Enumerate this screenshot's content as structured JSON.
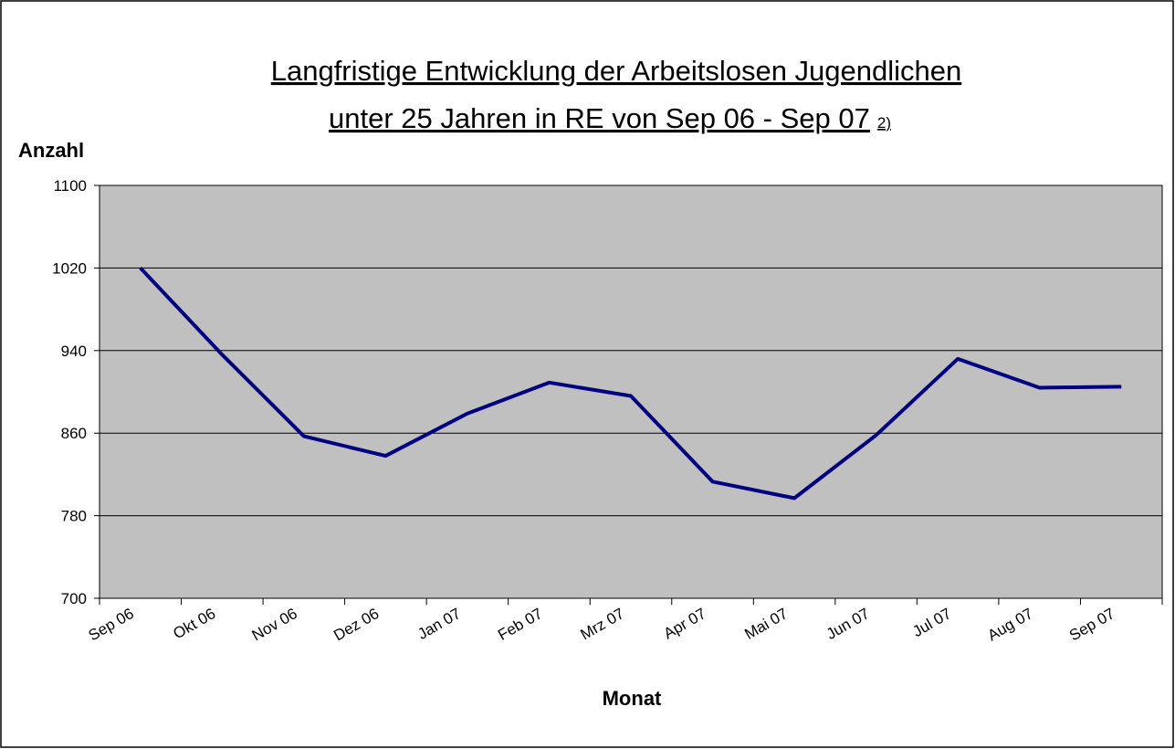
{
  "chart_data": {
    "type": "line",
    "title": [
      "Langfristige Entwicklung der Arbeitslosen Jugendlichen",
      "unter 25 Jahren in RE von Sep 06 - Sep 07"
    ],
    "title_note": "2)",
    "y_label": "Anzahl",
    "x_label": "Monat",
    "categories": [
      "Sep 06",
      "Okt 06",
      "Nov 06",
      "Dez 06",
      "Jan 07",
      "Feb 07",
      "Mrz 07",
      "Apr 07",
      "Mai 07",
      "Jun 07",
      "Jul 07",
      "Aug 07",
      "Sep 07"
    ],
    "series": [
      {
        "color": "#000080",
        "values": [
          1020,
          936,
          857,
          838,
          879,
          909,
          896,
          813,
          797,
          858,
          932,
          904,
          905
        ]
      }
    ],
    "ylim": [
      700,
      1100
    ],
    "yticks": [
      700,
      780,
      860,
      940,
      1020,
      1100
    ],
    "grid": true,
    "background": "#c0c0c0"
  }
}
